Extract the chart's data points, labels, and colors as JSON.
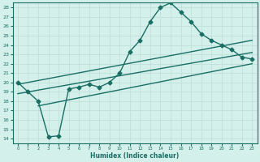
{
  "xlabel": "Humidex (Indice chaleur)",
  "background_color": "#d4f0eb",
  "line_color": "#1a6e64",
  "grid_color": "#c0e0da",
  "xlim": [
    -0.5,
    23.5
  ],
  "ylim": [
    13.5,
    28.5
  ],
  "xticks": [
    0,
    1,
    2,
    3,
    4,
    5,
    6,
    7,
    8,
    9,
    10,
    11,
    12,
    13,
    14,
    15,
    16,
    17,
    18,
    19,
    20,
    21,
    22,
    23
  ],
  "yticks": [
    14,
    15,
    16,
    17,
    18,
    19,
    20,
    21,
    22,
    23,
    24,
    25,
    26,
    27,
    28
  ],
  "main_line": {
    "x": [
      0,
      1,
      2,
      3,
      4,
      5,
      6,
      7,
      8,
      9,
      10,
      11,
      12,
      13,
      14,
      15,
      16,
      17,
      18,
      19,
      20,
      21,
      22,
      23
    ],
    "y": [
      20.0,
      19.0,
      18.0,
      14.2,
      14.3,
      19.3,
      19.5,
      19.8,
      19.5,
      20.0,
      21.0,
      23.3,
      24.5,
      26.5,
      28.0,
      28.5,
      27.5,
      26.5,
      25.2,
      24.5,
      24.0,
      23.5,
      22.7,
      22.5
    ]
  },
  "diag_lines": [
    {
      "x": [
        0,
        23
      ],
      "y": [
        19.8,
        24.5
      ]
    },
    {
      "x": [
        0,
        23
      ],
      "y": [
        18.8,
        23.2
      ]
    },
    {
      "x": [
        2,
        23
      ],
      "y": [
        17.5,
        22.0
      ]
    }
  ],
  "marker": "D",
  "markersize": 2.5,
  "linewidth": 1.0
}
